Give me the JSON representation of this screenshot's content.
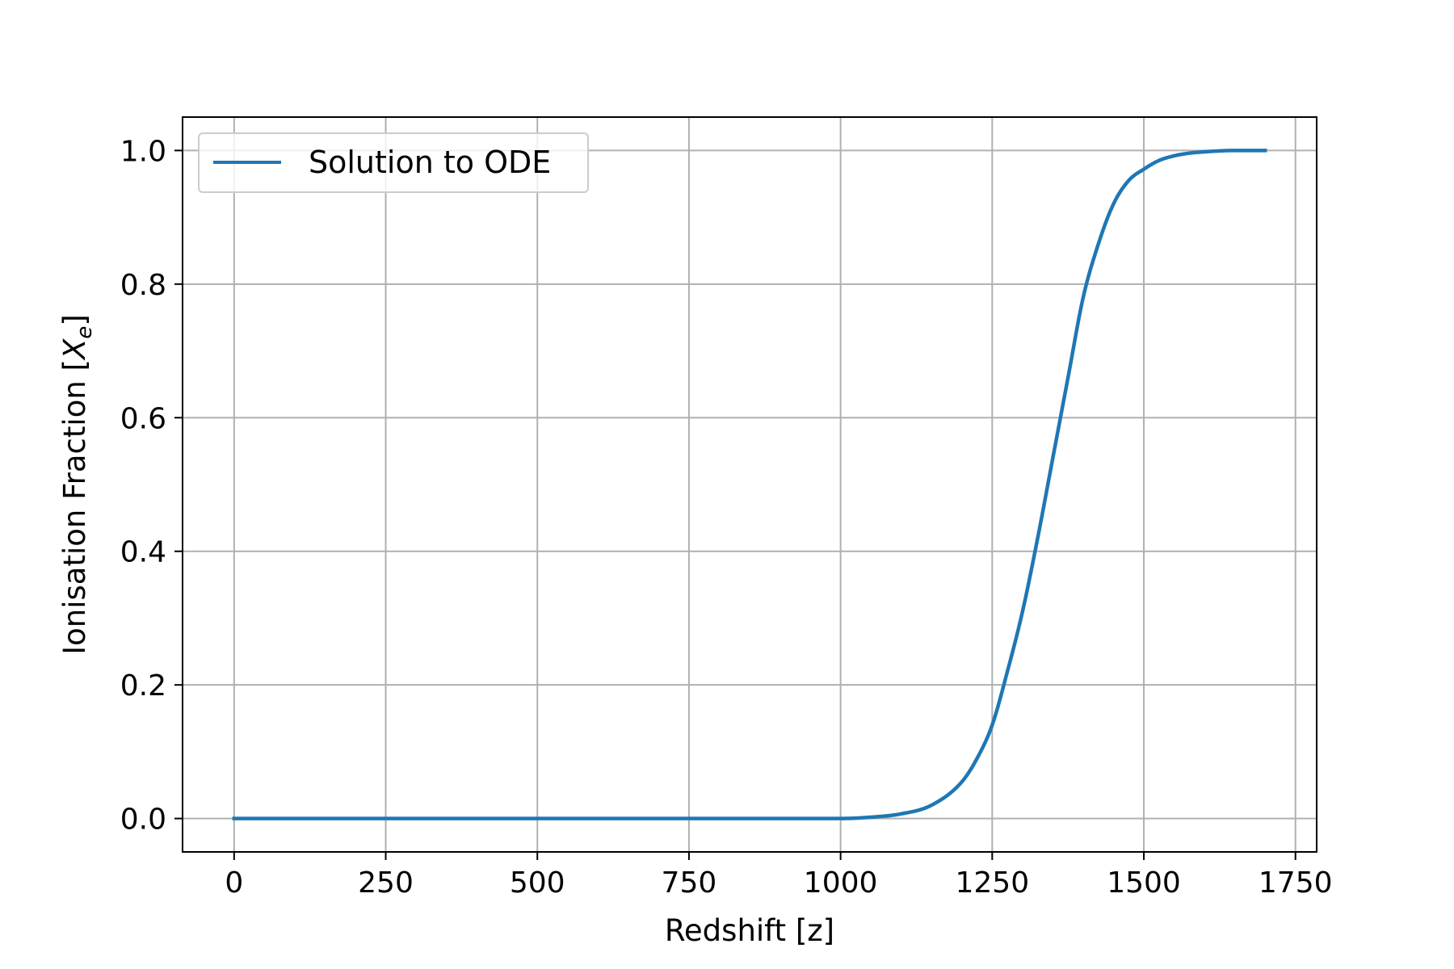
{
  "chart_data": {
    "type": "line",
    "title": "",
    "xlabel": "Redshift [z]",
    "ylabel": "Ionisation Fraction [X_e]",
    "ylabel_main": "Ionisation Fraction [",
    "ylabel_sym": "X",
    "ylabel_sub": "e",
    "ylabel_close": "]",
    "xlim": [
      -85,
      1785
    ],
    "ylim": [
      -0.05,
      1.05
    ],
    "xticks": [
      0,
      250,
      500,
      750,
      1000,
      1250,
      1500,
      1750
    ],
    "xtick_labels": [
      "0",
      "250",
      "500",
      "750",
      "1000",
      "1250",
      "1500",
      "1750"
    ],
    "yticks": [
      0.0,
      0.2,
      0.4,
      0.6,
      0.8,
      1.0
    ],
    "ytick_labels": [
      "0.0",
      "0.2",
      "0.4",
      "0.6",
      "0.8",
      "1.0"
    ],
    "grid": true,
    "legend_position": "upper-left",
    "series": [
      {
        "name": "Solution to ODE",
        "color": "#1f77b4",
        "x": [
          0,
          250,
          500,
          750,
          900,
          1000,
          1050,
          1100,
          1150,
          1200,
          1225,
          1250,
          1275,
          1300,
          1325,
          1350,
          1375,
          1400,
          1425,
          1450,
          1475,
          1500,
          1525,
          1550,
          1575,
          1600,
          1650,
          1700
        ],
        "y": [
          0.0,
          0.0,
          0.0,
          0.0,
          0.0,
          0.0,
          0.002,
          0.007,
          0.02,
          0.055,
          0.09,
          0.14,
          0.22,
          0.31,
          0.42,
          0.54,
          0.66,
          0.78,
          0.86,
          0.92,
          0.955,
          0.972,
          0.985,
          0.992,
          0.996,
          0.998,
          1.0,
          1.0
        ]
      }
    ]
  }
}
